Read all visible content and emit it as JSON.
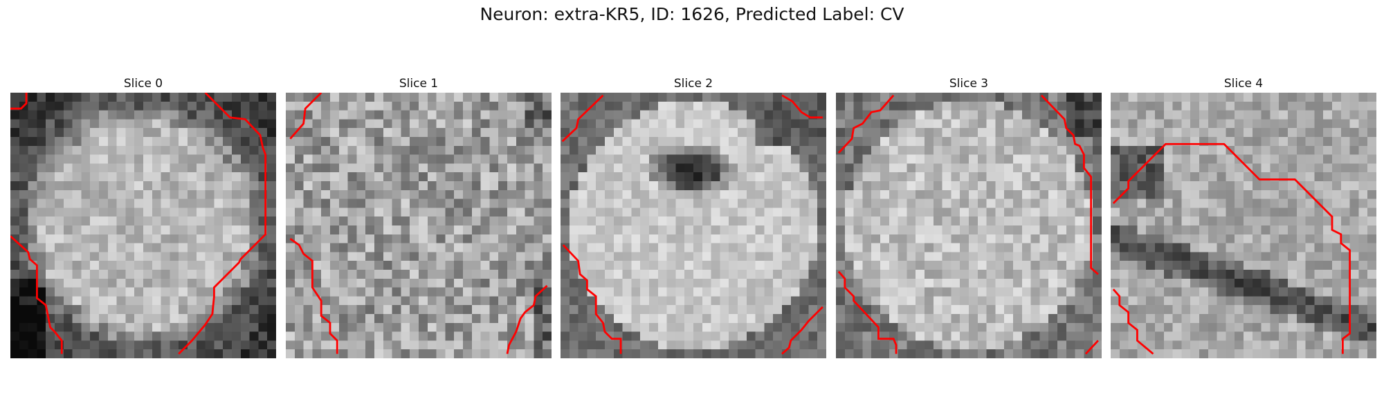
{
  "figure": {
    "title": "Neuron: extra-KR5, ID: 1626, Predicted Label: CV"
  },
  "panels": [
    {
      "title": "Slice 0",
      "pattern": "ring"
    },
    {
      "title": "Slice 1",
      "pattern": "noise"
    },
    {
      "title": "Slice 2",
      "pattern": "hole"
    },
    {
      "title": "Slice 3",
      "pattern": "ring-light"
    },
    {
      "title": "Slice 4",
      "pattern": "band"
    }
  ],
  "colors": {
    "contour": "#ff0000",
    "colormap": "grayscale"
  }
}
